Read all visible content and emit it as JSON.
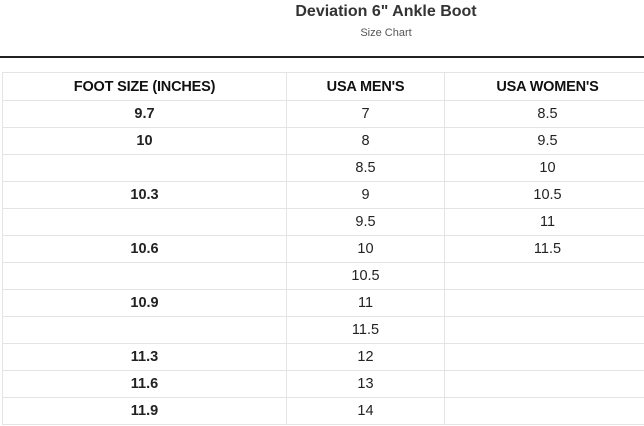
{
  "header": {
    "title": "Deviation 6\" Ankle Boot",
    "subtitle": "Size Chart"
  },
  "table": {
    "columns": [
      "FOOT SIZE (INCHES)",
      "USA MEN'S",
      "USA WOMEN'S"
    ],
    "rows": [
      [
        "9.7",
        "7",
        "8.5"
      ],
      [
        "10",
        "8",
        "9.5"
      ],
      [
        "",
        "8.5",
        "10"
      ],
      [
        "10.3",
        "9",
        "10.5"
      ],
      [
        "",
        "9.5",
        "11"
      ],
      [
        "10.6",
        "10",
        "11.5"
      ],
      [
        "",
        "10.5",
        ""
      ],
      [
        "10.9",
        "11",
        ""
      ],
      [
        "",
        "11.5",
        ""
      ],
      [
        "11.3",
        "12",
        ""
      ],
      [
        "11.6",
        "13",
        ""
      ],
      [
        "11.9",
        "14",
        ""
      ]
    ]
  }
}
